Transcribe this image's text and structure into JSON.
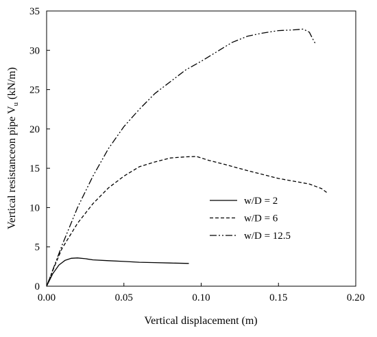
{
  "chart_data": {
    "type": "line",
    "xlabel": "Vertical displacement (m)",
    "ylabel": "Vertical resistanceon pipe  V",
    "ylabel_subscript": "u",
    "ylabel_unit": " (kN/m)",
    "xlim": [
      0,
      0.2
    ],
    "ylim": [
      0,
      35
    ],
    "x_ticks": [
      "0.00",
      "0.05",
      "0.10",
      "0.15",
      "0.20"
    ],
    "x_tick_values": [
      0,
      0.05,
      0.1,
      0.15,
      0.2
    ],
    "y_ticks": [
      "0",
      "5",
      "10",
      "15",
      "20",
      "25",
      "30",
      "35"
    ],
    "y_tick_values": [
      0,
      5,
      10,
      15,
      20,
      25,
      30,
      35
    ],
    "grid": false,
    "legend_position": "right",
    "series": [
      {
        "name": "w/D = 2",
        "dash": "solid",
        "color": "#000000",
        "x": [
          0,
          0.004,
          0.008,
          0.012,
          0.016,
          0.02,
          0.025,
          0.03,
          0.04,
          0.05,
          0.06,
          0.07,
          0.08,
          0.092
        ],
        "y": [
          0,
          1.6,
          2.7,
          3.3,
          3.55,
          3.6,
          3.5,
          3.35,
          3.25,
          3.15,
          3.05,
          3.0,
          2.95,
          2.9
        ]
      },
      {
        "name": "w/D = 6",
        "dash": "dashed",
        "color": "#000000",
        "x": [
          0,
          0.005,
          0.01,
          0.02,
          0.03,
          0.04,
          0.05,
          0.06,
          0.07,
          0.08,
          0.09,
          0.097,
          0.105,
          0.115,
          0.13,
          0.15,
          0.17,
          0.178,
          0.182
        ],
        "y": [
          0,
          2.5,
          4.8,
          8.0,
          10.5,
          12.5,
          14.0,
          15.2,
          15.8,
          16.3,
          16.45,
          16.5,
          16.0,
          15.5,
          14.7,
          13.7,
          13.0,
          12.4,
          11.8
        ]
      },
      {
        "name": "w/D = 12.5",
        "dash": "dash-dot-dot",
        "color": "#000000",
        "x": [
          0,
          0.005,
          0.01,
          0.02,
          0.03,
          0.04,
          0.05,
          0.06,
          0.07,
          0.08,
          0.09,
          0.1,
          0.11,
          0.12,
          0.13,
          0.14,
          0.15,
          0.16,
          0.166,
          0.17,
          0.172,
          0.174
        ],
        "y": [
          0,
          2.6,
          5.2,
          10.0,
          14.0,
          17.5,
          20.3,
          22.5,
          24.5,
          26.0,
          27.5,
          28.6,
          29.8,
          31.0,
          31.8,
          32.2,
          32.5,
          32.6,
          32.7,
          32.3,
          31.5,
          30.8
        ]
      }
    ]
  }
}
